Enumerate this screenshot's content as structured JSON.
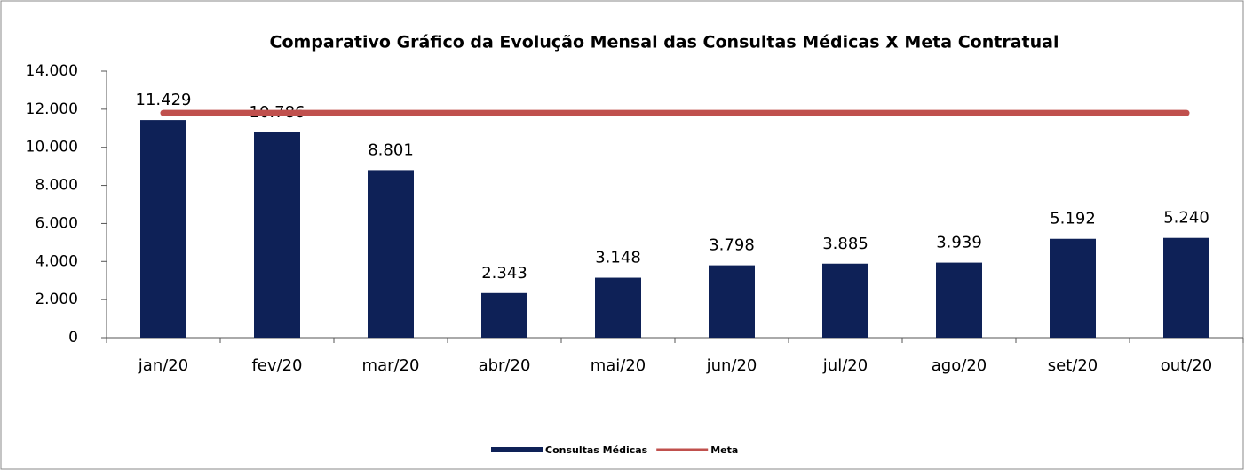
{
  "chart_data": {
    "type": "bar",
    "title": "Comparativo Gráfico da Evolução Mensal das Consultas Médicas X Meta Contratual",
    "categories": [
      "jan/20",
      "fev/20",
      "mar/20",
      "abr/20",
      "mai/20",
      "jun/20",
      "jul/20",
      "ago/20",
      "set/20",
      "out/20"
    ],
    "series": [
      {
        "name": "Consultas Médicas",
        "type": "bar",
        "color": "#0e2157",
        "values": [
          11429,
          10786,
          8801,
          2343,
          3148,
          3798,
          3885,
          3939,
          5192,
          5240
        ],
        "value_labels": [
          "11.429",
          "10.786",
          "8.801",
          "2.343",
          "3.148",
          "3.798",
          "3.885",
          "3.939",
          "5.192",
          "5.240"
        ]
      },
      {
        "name": "Meta",
        "type": "line",
        "color": "#c0504d",
        "values": [
          11800,
          11800,
          11800,
          11800,
          11800,
          11800,
          11800,
          11800,
          11800,
          11800
        ]
      }
    ],
    "ylim": [
      0,
      14000
    ],
    "yticks": [
      0,
      {
        "value": 2000,
        "label": "2.000"
      },
      {
        "value": 4000,
        "label": "4.000"
      },
      {
        "value": 6000,
        "label": "6.000"
      },
      {
        "value": 8000,
        "label": "8.000"
      },
      {
        "value": 10000,
        "label": "10.000"
      },
      {
        "value": 12000,
        "label": "12.000"
      },
      {
        "value": 14000,
        "label": "14.000"
      }
    ],
    "legend": "bottom"
  }
}
